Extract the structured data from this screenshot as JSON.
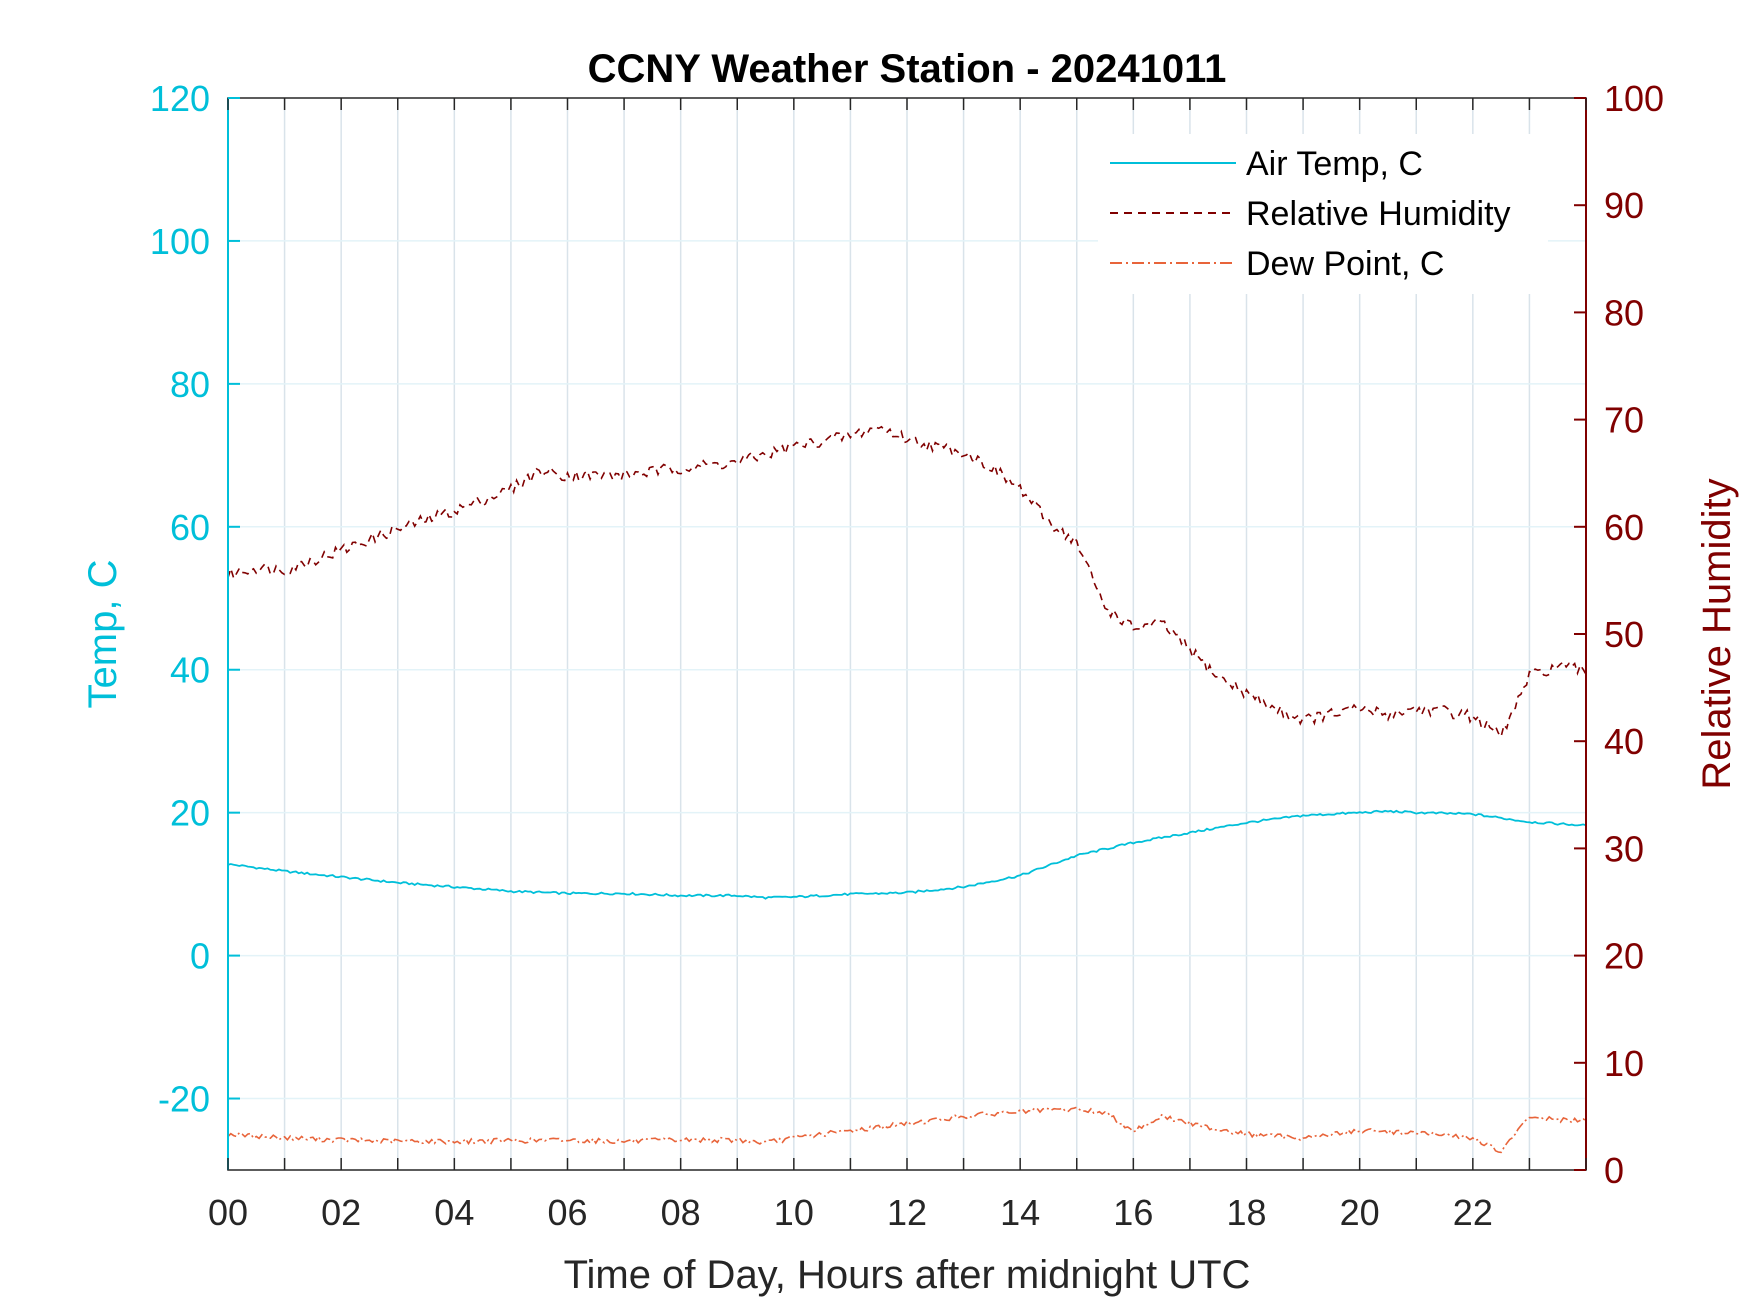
{
  "chart_data": {
    "type": "line",
    "title": "CCNY Weather Station - 20241011",
    "xlabel": "Time of Day, Hours after midnight UTC",
    "ylabel_left": "Temp, C",
    "ylabel_right": "Relative Humidity",
    "xlim": [
      0,
      24
    ],
    "ylim_left": [
      -30,
      120
    ],
    "ylim_right": [
      0,
      100
    ],
    "x_ticks": [
      0,
      2,
      4,
      6,
      8,
      10,
      12,
      14,
      16,
      18,
      20,
      22
    ],
    "x_tick_labels": [
      "00",
      "02",
      "04",
      "06",
      "08",
      "10",
      "12",
      "14",
      "16",
      "18",
      "20",
      "22"
    ],
    "y_left_ticks": [
      -20,
      0,
      20,
      40,
      60,
      80,
      100,
      120
    ],
    "y_left_tick_labels": [
      "-20",
      "0",
      "20",
      "40",
      "60",
      "80",
      "100",
      "120"
    ],
    "y_right_ticks": [
      0,
      10,
      20,
      30,
      40,
      50,
      60,
      70,
      80,
      90,
      100
    ],
    "y_right_tick_labels": [
      "0",
      "10",
      "20",
      "30",
      "40",
      "50",
      "60",
      "70",
      "80",
      "90",
      "100"
    ],
    "grid": true,
    "legend_position": "top-right",
    "colors": {
      "left_axis": "#00BFD9",
      "right_axis": "#800000",
      "dew_point": "#E8643A",
      "grid": "#d9e3ea",
      "frame": "#262626"
    },
    "series": [
      {
        "name": "Air Temp, C",
        "axis": "left",
        "style": "solid",
        "color": "#00BFD9",
        "x": [
          0,
          1,
          2,
          3,
          4,
          5,
          6,
          7,
          8,
          9,
          9.5,
          10,
          11,
          12,
          13,
          14,
          14.5,
          15,
          16,
          17,
          18,
          19,
          20,
          20.5,
          21,
          22,
          23,
          24
        ],
        "y": [
          12.8,
          11.8,
          11.0,
          10.2,
          9.6,
          9.0,
          8.7,
          8.7,
          8.4,
          8.4,
          8.1,
          8.2,
          8.6,
          8.8,
          9.6,
          11.2,
          12.6,
          14.0,
          15.8,
          17.2,
          18.6,
          19.6,
          20.0,
          20.2,
          20.0,
          19.8,
          18.7,
          18.2
        ]
      },
      {
        "name": "Relative Humidity",
        "axis": "right",
        "style": "dashed",
        "color": "#800000",
        "x": [
          0,
          0.5,
          1,
          2,
          3,
          4,
          5,
          5.5,
          6,
          7,
          8,
          9,
          10,
          11,
          11.5,
          12,
          12.5,
          13,
          13.5,
          14,
          14.5,
          15,
          15.5,
          16,
          16.5,
          17,
          17.5,
          18,
          18.5,
          19,
          19.5,
          20,
          20.5,
          21,
          21.5,
          22,
          22.5,
          23,
          23.5,
          24
        ],
        "y": [
          55.5,
          56.2,
          56.0,
          57.8,
          59.8,
          61.5,
          63.5,
          65.2,
          64.8,
          64.8,
          65.5,
          66.0,
          67.5,
          68.5,
          69.3,
          68.2,
          67.5,
          67.0,
          65.5,
          63.5,
          60.5,
          58.5,
          52.5,
          50.5,
          51.0,
          48.5,
          46.0,
          44.5,
          43.0,
          42.0,
          42.5,
          43.0,
          42.5,
          43.0,
          42.8,
          42.3,
          40.5,
          46.0,
          47.0,
          46.5
        ]
      },
      {
        "name": "Dew Point, C",
        "axis": "left",
        "style": "dashdot",
        "color": "#E8643A",
        "x": [
          0,
          1,
          2,
          3,
          4,
          5,
          6,
          7,
          8,
          9,
          9.5,
          10,
          11,
          12,
          13,
          14,
          15,
          15.5,
          16,
          16.5,
          17,
          18,
          19,
          20,
          21,
          22,
          22.5,
          23,
          23.5,
          24
        ],
        "y": [
          -25.0,
          -25.5,
          -25.8,
          -26.0,
          -26.0,
          -25.9,
          -25.8,
          -26.0,
          -25.8,
          -25.8,
          -26.2,
          -25.5,
          -24.5,
          -23.5,
          -22.5,
          -21.8,
          -21.5,
          -22.0,
          -24.5,
          -22.5,
          -23.5,
          -25.0,
          -25.5,
          -24.5,
          -24.8,
          -25.5,
          -27.5,
          -22.5,
          -23.0,
          -23.2
        ]
      }
    ]
  }
}
